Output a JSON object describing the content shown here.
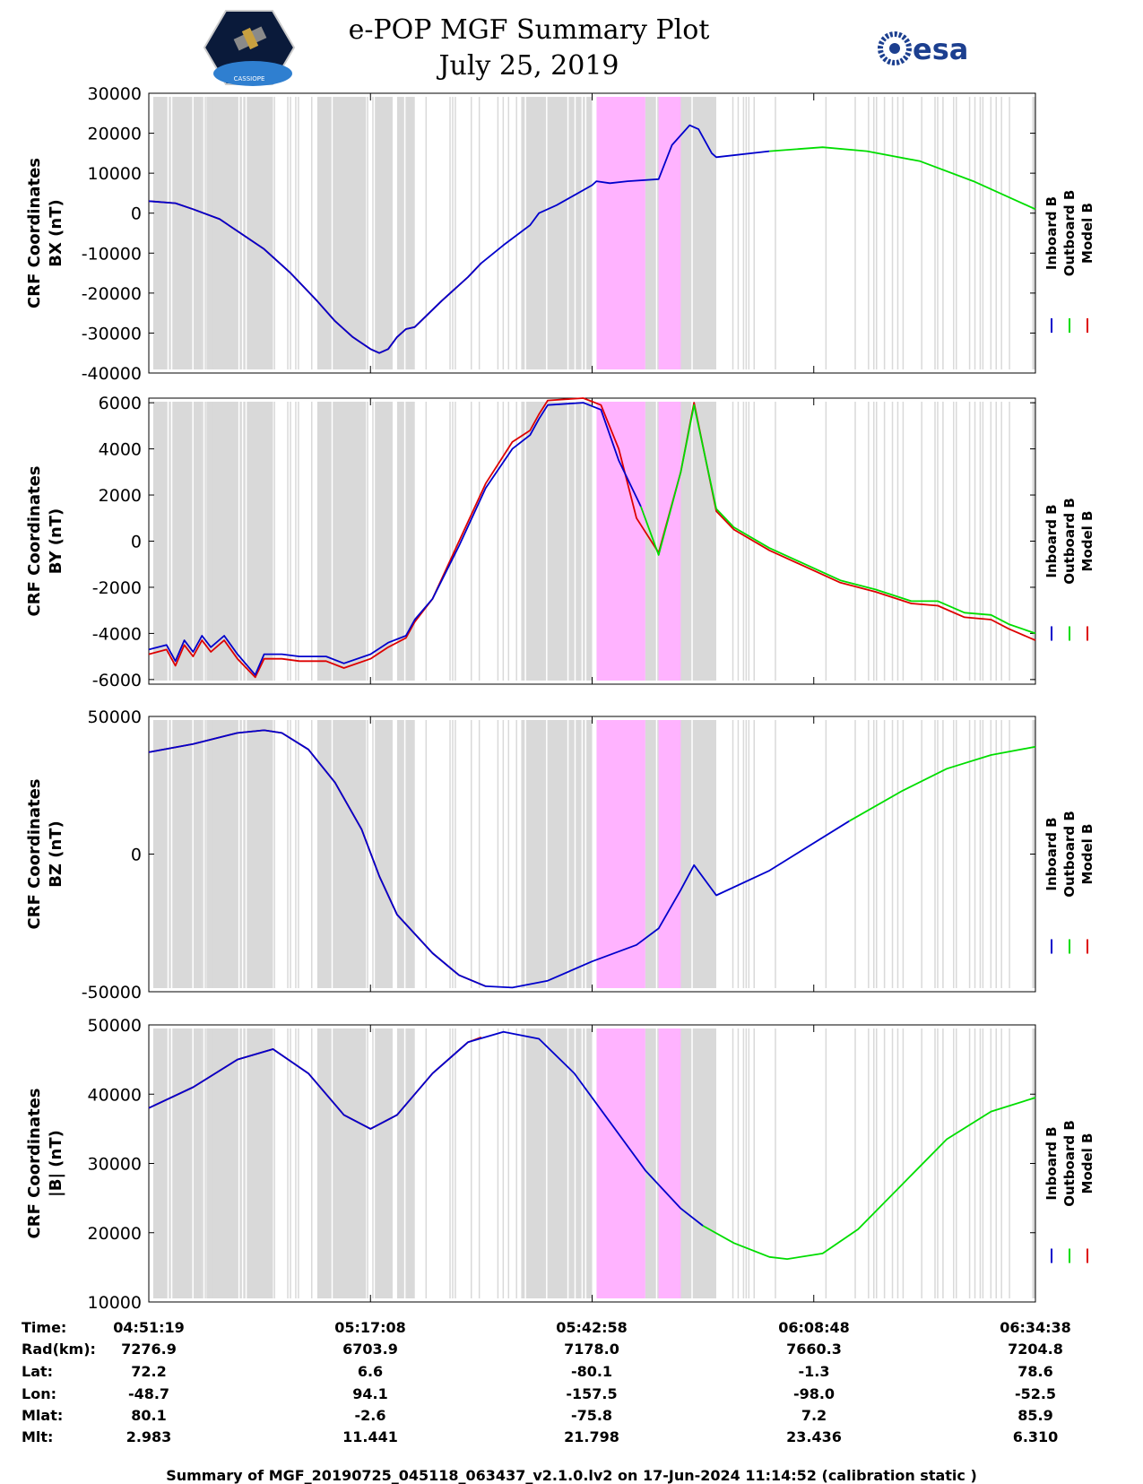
{
  "header": {
    "title": "e-POP MGF Summary Plot",
    "date": "July 25, 2019",
    "left_logo_text": "CASSIOPE",
    "right_logo_text": "esa"
  },
  "colors": {
    "inboard": "#0000cc",
    "outboard": "#00dd00",
    "model": "#dd0000",
    "gap_gray": "#d9d9d9",
    "gap_pink": "#ffb3ff"
  },
  "chart_data": [
    {
      "type": "line",
      "id": "bx",
      "ylabel": [
        "CRF Coordinates",
        "BX (nT)"
      ],
      "ylim": [
        -40000,
        30000
      ],
      "yticks": [
        -40000,
        -30000,
        -20000,
        -10000,
        0,
        10000,
        20000,
        30000
      ],
      "series": [
        {
          "name": "Model B",
          "color": "#dd0000",
          "points": [
            [
              0,
              3000
            ],
            [
              0.03,
              2500
            ],
            [
              0.05,
              1000
            ],
            [
              0.08,
              -1500
            ],
            [
              0.1,
              -4500
            ],
            [
              0.13,
              -9000
            ],
            [
              0.16,
              -15000
            ],
            [
              0.19,
              -22000
            ],
            [
              0.21,
              -27000
            ],
            [
              0.23,
              -31000
            ],
            [
              0.25,
              -34000
            ],
            [
              0.26,
              -35000
            ],
            [
              0.27,
              -34000
            ],
            [
              0.28,
              -31000
            ],
            [
              0.29,
              -29000
            ],
            [
              0.3,
              -28500
            ],
            [
              0.33,
              -22000
            ],
            [
              0.36,
              -16000
            ],
            [
              0.375,
              -12500
            ]
          ]
        },
        {
          "name": "Inboard B",
          "color": "#0000cc",
          "points": [
            [
              0,
              3000
            ],
            [
              0.03,
              2500
            ],
            [
              0.05,
              1000
            ],
            [
              0.08,
              -1500
            ],
            [
              0.1,
              -4500
            ],
            [
              0.13,
              -9000
            ],
            [
              0.16,
              -15000
            ],
            [
              0.19,
              -22000
            ],
            [
              0.21,
              -27000
            ],
            [
              0.23,
              -31000
            ],
            [
              0.25,
              -34000
            ],
            [
              0.26,
              -35000
            ],
            [
              0.27,
              -34000
            ],
            [
              0.28,
              -31000
            ],
            [
              0.29,
              -29000
            ],
            [
              0.3,
              -28500
            ],
            [
              0.33,
              -22000
            ],
            [
              0.36,
              -16000
            ],
            [
              0.375,
              -12500
            ],
            [
              0.4,
              -8000
            ],
            [
              0.43,
              -3000
            ],
            [
              0.44,
              0
            ],
            [
              0.46,
              2000
            ],
            [
              0.48,
              4500
            ],
            [
              0.5,
              7000
            ],
            [
              0.505,
              8000
            ],
            [
              0.52,
              7500
            ],
            [
              0.54,
              8000
            ],
            [
              0.575,
              8500
            ],
            [
              0.59,
              17000
            ],
            [
              0.61,
              22000
            ],
            [
              0.62,
              21000
            ],
            [
              0.635,
              15000
            ],
            [
              0.64,
              14000
            ],
            [
              0.7,
              15500
            ]
          ]
        },
        {
          "name": "Outboard B",
          "color": "#00dd00",
          "points": [
            [
              0.7,
              15500
            ],
            [
              0.76,
              16500
            ],
            [
              0.81,
              15500
            ],
            [
              0.87,
              13000
            ],
            [
              0.93,
              8000
            ],
            [
              0.97,
              4000
            ],
            [
              1,
              1000
            ]
          ]
        }
      ]
    },
    {
      "type": "line",
      "id": "by",
      "ylabel": [
        "CRF Coordinates",
        "BY (nT)"
      ],
      "ylim": [
        -6200,
        6200
      ],
      "yticks": [
        -6000,
        -4000,
        -2000,
        0,
        2000,
        4000,
        6000
      ],
      "series": [
        {
          "name": "Model B",
          "color": "#dd0000",
          "points": [
            [
              0,
              -4900
            ],
            [
              0.02,
              -4700
            ],
            [
              0.03,
              -5400
            ],
            [
              0.04,
              -4500
            ],
            [
              0.05,
              -5000
            ],
            [
              0.06,
              -4300
            ],
            [
              0.07,
              -4800
            ],
            [
              0.085,
              -4300
            ],
            [
              0.1,
              -5100
            ],
            [
              0.12,
              -5900
            ],
            [
              0.13,
              -5100
            ],
            [
              0.15,
              -5100
            ],
            [
              0.17,
              -5200
            ],
            [
              0.2,
              -5200
            ],
            [
              0.22,
              -5500
            ],
            [
              0.25,
              -5100
            ],
            [
              0.27,
              -4600
            ],
            [
              0.29,
              -4200
            ],
            [
              0.3,
              -3500
            ],
            [
              0.32,
              -2500
            ],
            [
              0.35,
              0
            ],
            [
              0.38,
              2500
            ],
            [
              0.41,
              4300
            ],
            [
              0.43,
              4800
            ],
            [
              0.44,
              5500
            ],
            [
              0.45,
              6100
            ],
            [
              0.49,
              6200
            ],
            [
              0.51,
              5900
            ],
            [
              0.53,
              4000
            ],
            [
              0.55,
              1000
            ],
            [
              0.575,
              -500
            ],
            [
              0.6,
              3000
            ],
            [
              0.615,
              6000
            ],
            [
              0.64,
              1300
            ],
            [
              0.66,
              500
            ],
            [
              0.7,
              -400
            ],
            [
              0.74,
              -1100
            ],
            [
              0.78,
              -1800
            ],
            [
              0.82,
              -2200
            ],
            [
              0.86,
              -2700
            ],
            [
              0.89,
              -2800
            ],
            [
              0.92,
              -3300
            ],
            [
              0.95,
              -3400
            ],
            [
              0.97,
              -3800
            ],
            [
              1,
              -4300
            ]
          ]
        },
        {
          "name": "Inboard B",
          "color": "#0000cc",
          "points": [
            [
              0,
              -4700
            ],
            [
              0.02,
              -4500
            ],
            [
              0.03,
              -5200
            ],
            [
              0.04,
              -4300
            ],
            [
              0.05,
              -4800
            ],
            [
              0.06,
              -4100
            ],
            [
              0.07,
              -4600
            ],
            [
              0.085,
              -4100
            ],
            [
              0.1,
              -4900
            ],
            [
              0.12,
              -5800
            ],
            [
              0.13,
              -4900
            ],
            [
              0.15,
              -4900
            ],
            [
              0.17,
              -5000
            ],
            [
              0.2,
              -5000
            ],
            [
              0.22,
              -5300
            ],
            [
              0.25,
              -4900
            ],
            [
              0.27,
              -4400
            ],
            [
              0.29,
              -4100
            ],
            [
              0.3,
              -3400
            ],
            [
              0.32,
              -2500
            ],
            [
              0.35,
              -200
            ],
            [
              0.38,
              2300
            ],
            [
              0.41,
              4000
            ],
            [
              0.43,
              4600
            ],
            [
              0.44,
              5300
            ],
            [
              0.45,
              5900
            ],
            [
              0.49,
              6000
            ],
            [
              0.51,
              5700
            ],
            [
              0.53,
              3500
            ],
            [
              0.555,
              1500
            ]
          ]
        },
        {
          "name": "Outboard B",
          "color": "#00dd00",
          "points": [
            [
              0.555,
              1500
            ],
            [
              0.575,
              -600
            ],
            [
              0.6,
              3000
            ],
            [
              0.615,
              5900
            ],
            [
              0.64,
              1400
            ],
            [
              0.66,
              600
            ],
            [
              0.7,
              -300
            ],
            [
              0.74,
              -1000
            ],
            [
              0.78,
              -1700
            ],
            [
              0.82,
              -2100
            ],
            [
              0.86,
              -2600
            ],
            [
              0.89,
              -2600
            ],
            [
              0.92,
              -3100
            ],
            [
              0.95,
              -3200
            ],
            [
              0.97,
              -3600
            ],
            [
              1,
              -4000
            ]
          ]
        }
      ]
    },
    {
      "type": "line",
      "id": "bz",
      "ylabel": [
        "CRF Coordinates",
        "BZ (nT)"
      ],
      "ylim": [
        -50000,
        50000
      ],
      "yticks": [
        -50000,
        0,
        50000
      ],
      "series": [
        {
          "name": "Model B",
          "color": "#dd0000",
          "points": [
            [
              0,
              37000
            ],
            [
              0.05,
              40000
            ],
            [
              0.1,
              44000
            ],
            [
              0.13,
              45000
            ],
            [
              0.15,
              44000
            ],
            [
              0.18,
              38000
            ],
            [
              0.21,
              26000
            ],
            [
              0.24,
              9000
            ],
            [
              0.26,
              -8000
            ],
            [
              0.28,
              -22000
            ],
            [
              0.3,
              -29000
            ],
            [
              0.32,
              -36000
            ],
            [
              0.35,
              -44000
            ],
            [
              0.38,
              -48000
            ]
          ]
        },
        {
          "name": "Inboard B",
          "color": "#0000cc",
          "points": [
            [
              0,
              37000
            ],
            [
              0.05,
              40000
            ],
            [
              0.1,
              44000
            ],
            [
              0.13,
              45000
            ],
            [
              0.15,
              44000
            ],
            [
              0.18,
              38000
            ],
            [
              0.21,
              26000
            ],
            [
              0.24,
              9000
            ],
            [
              0.26,
              -8000
            ],
            [
              0.28,
              -22000
            ],
            [
              0.3,
              -29000
            ],
            [
              0.32,
              -36000
            ],
            [
              0.35,
              -44000
            ],
            [
              0.38,
              -48000
            ],
            [
              0.41,
              -48500
            ],
            [
              0.45,
              -46000
            ],
            [
              0.5,
              -39000
            ],
            [
              0.55,
              -33000
            ],
            [
              0.575,
              -27000
            ],
            [
              0.6,
              -13000
            ],
            [
              0.615,
              -4000
            ],
            [
              0.64,
              -15000
            ],
            [
              0.7,
              -6000
            ],
            [
              0.79,
              12000
            ]
          ]
        },
        {
          "name": "Outboard B",
          "color": "#00dd00",
          "points": [
            [
              0.79,
              12000
            ],
            [
              0.85,
              23000
            ],
            [
              0.9,
              31000
            ],
            [
              0.95,
              36000
            ],
            [
              1,
              39000
            ]
          ]
        }
      ]
    },
    {
      "type": "line",
      "id": "bmag",
      "ylabel": [
        "CRF Coordinates",
        "|B| (nT)"
      ],
      "ylim": [
        10000,
        50000
      ],
      "yticks": [
        10000,
        20000,
        30000,
        40000,
        50000
      ],
      "series": [
        {
          "name": "Model B",
          "color": "#dd0000",
          "points": [
            [
              0,
              38000
            ],
            [
              0.05,
              41000
            ],
            [
              0.1,
              45000
            ],
            [
              0.14,
              46500
            ],
            [
              0.18,
              43000
            ],
            [
              0.22,
              37000
            ],
            [
              0.25,
              35000
            ],
            [
              0.28,
              37000
            ],
            [
              0.32,
              43000
            ],
            [
              0.36,
              47500
            ],
            [
              0.375,
              48200
            ]
          ]
        },
        {
          "name": "Inboard B",
          "color": "#0000cc",
          "points": [
            [
              0,
              38000
            ],
            [
              0.05,
              41000
            ],
            [
              0.1,
              45000
            ],
            [
              0.14,
              46500
            ],
            [
              0.18,
              43000
            ],
            [
              0.22,
              37000
            ],
            [
              0.25,
              35000
            ],
            [
              0.28,
              37000
            ],
            [
              0.32,
              43000
            ],
            [
              0.36,
              47500
            ],
            [
              0.4,
              49000
            ],
            [
              0.44,
              48000
            ],
            [
              0.48,
              43000
            ],
            [
              0.52,
              36000
            ],
            [
              0.56,
              29000
            ],
            [
              0.6,
              23500
            ],
            [
              0.625,
              21000
            ]
          ]
        },
        {
          "name": "Outboard B",
          "color": "#00dd00",
          "points": [
            [
              0.625,
              21000
            ],
            [
              0.66,
              18500
            ],
            [
              0.7,
              16500
            ],
            [
              0.72,
              16200
            ],
            [
              0.76,
              17000
            ],
            [
              0.8,
              20500
            ],
            [
              0.85,
              27000
            ],
            [
              0.9,
              33500
            ],
            [
              0.95,
              37500
            ],
            [
              1,
              39500
            ]
          ]
        }
      ]
    }
  ],
  "legend": [
    "Inboard B",
    "Outboard B",
    "Model B"
  ],
  "ephemeris": {
    "labels": [
      "Time:",
      "Rad(km):",
      "Lat:",
      "Lon:",
      "Mlat:",
      "Mlt:"
    ],
    "columns": [
      [
        "04:51:19",
        "7276.9",
        "72.2",
        "-48.7",
        "80.1",
        "2.983"
      ],
      [
        "05:17:08",
        "6703.9",
        "6.6",
        "94.1",
        "-2.6",
        "11.441"
      ],
      [
        "05:42:58",
        "7178.0",
        "-80.1",
        "-157.5",
        "-75.8",
        "21.798"
      ],
      [
        "06:08:48",
        "7660.3",
        "-1.3",
        "-98.0",
        "7.2",
        "23.436"
      ],
      [
        "06:34:38",
        "7204.8",
        "78.6",
        "-52.5",
        "85.9",
        "6.310"
      ]
    ]
  },
  "footer": "Summary of MGF_20190725_045118_063437_v2.1.0.lv2 on 17-Jun-2024 11:14:52 (calibration static )"
}
